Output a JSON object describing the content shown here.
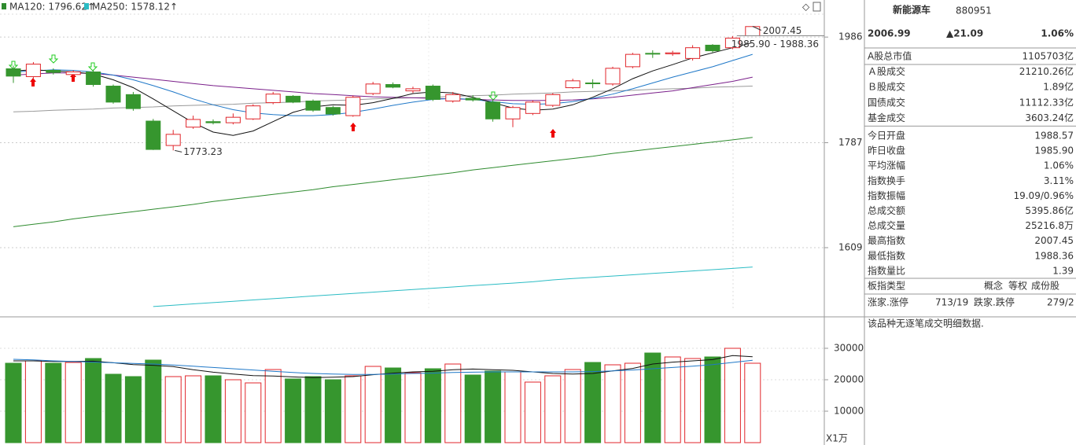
{
  "chart_data": [
    {
      "type": "candlestick",
      "log_scale": true,
      "ylim": [
        1505,
        2061
      ],
      "yticks": [
        1986,
        1787,
        1609
      ],
      "up_color": "#e0262b",
      "down_color": "#36962e",
      "open": [
        1924,
        1909,
        1921,
        1913,
        1918,
        1891,
        1875,
        1826,
        1782,
        1815,
        1825,
        1823,
        1830,
        1860,
        1872,
        1863,
        1851,
        1836,
        1877,
        1894,
        1882,
        1891,
        1863,
        1868,
        1861,
        1830,
        1840,
        1855,
        1888,
        1897,
        1895,
        1928,
        1954,
        1953,
        1944,
        1970,
        1965,
        1988.57
      ],
      "high": [
        1930,
        1937,
        1925,
        1921,
        1922,
        1894,
        1880,
        1830,
        1810,
        1836,
        1829,
        1840,
        1857,
        1880,
        1874,
        1866,
        1854,
        1873,
        1899,
        1898,
        1890,
        1894,
        1880,
        1874,
        1865,
        1854,
        1864,
        1878,
        1905,
        1904,
        1928,
        1955,
        1960,
        1959,
        1970,
        1972,
        1988,
        2007.45
      ],
      "low": [
        1897,
        1903,
        1913,
        1908,
        1890,
        1858,
        1845,
        1774,
        1773.23,
        1812,
        1820,
        1820,
        1828,
        1857,
        1859,
        1843,
        1836,
        1834,
        1874,
        1887,
        1878,
        1863,
        1860,
        1862,
        1825,
        1815,
        1837,
        1852,
        1886,
        1887,
        1892,
        1925,
        1945,
        1949,
        1940,
        1956,
        1962,
        1988.36
      ],
      "close": [
        1910,
        1933,
        1917,
        1918,
        1894,
        1861,
        1849,
        1775,
        1802,
        1829,
        1823,
        1833,
        1854,
        1876,
        1861,
        1846,
        1839,
        1870,
        1895,
        1889,
        1886,
        1866,
        1875,
        1865,
        1830,
        1851,
        1861,
        1875,
        1901,
        1896,
        1925,
        1952,
        1953,
        1955,
        1965,
        1959,
        1984,
        2006.99
      ],
      "series": [
        {
          "name": "MA120: 1796.62↑",
          "color": "#2e8b2e",
          "values": [
            1643,
            1647,
            1651,
            1656,
            1660,
            1664,
            1668,
            1672,
            1676,
            1680,
            1685,
            1689,
            1693,
            1697,
            1701,
            1705,
            1710,
            1714,
            1718,
            1722,
            1726,
            1730,
            1734,
            1739,
            1743,
            1747,
            1751,
            1755,
            1759,
            1763,
            1768,
            1772,
            1776,
            1780,
            1784,
            1788,
            1792,
            1796.62
          ]
        },
        {
          "name": "MA250: 1578.12↑",
          "color": "#2bbcc4",
          "values": [
            null,
            null,
            null,
            null,
            null,
            null,
            null,
            1517,
            1519,
            1521,
            1523,
            1525,
            1527,
            1529,
            1531,
            1533,
            1535,
            1537,
            1539,
            1541,
            1543,
            1545,
            1547,
            1549,
            1551,
            1553,
            1555,
            1558,
            1560,
            1562,
            1564,
            1566,
            1568,
            1570,
            1572,
            1574,
            1576,
            1578.12
          ]
        },
        {
          "color": "#999999",
          "values": [
            1843,
            1844,
            1846,
            1847,
            1848,
            1850,
            1851,
            1852,
            1854,
            1855,
            1856,
            1857,
            1859,
            1860,
            1861,
            1863,
            1864,
            1865,
            1867,
            1868,
            1869,
            1870,
            1872,
            1873,
            1874,
            1876,
            1877,
            1878,
            1880,
            1881,
            1882,
            1883,
            1885,
            1886,
            1887,
            1889,
            1890,
            1891
          ]
        },
        {
          "color": "#7a1f8a",
          "values": [
            1912,
            1914,
            1916,
            1916,
            1915,
            1912,
            1908,
            1904,
            1900,
            1896,
            1892,
            1889,
            1886,
            1883,
            1880,
            1877,
            1875,
            1873,
            1871,
            1870,
            1869,
            1868,
            1867,
            1866,
            1865,
            1864,
            1864,
            1864,
            1865,
            1867,
            1870,
            1874,
            1878,
            1882,
            1888,
            1894,
            1900,
            1908
          ]
        },
        {
          "color": "#1f78c8",
          "values": [
            1918,
            1920,
            1922,
            1921,
            1918,
            1912,
            1903,
            1892,
            1880,
            1867,
            1856,
            1847,
            1841,
            1838,
            1836,
            1836,
            1838,
            1842,
            1848,
            1855,
            1861,
            1866,
            1868,
            1866,
            1862,
            1858,
            1857,
            1858,
            1862,
            1868,
            1876,
            1886,
            1897,
            1908,
            1918,
            1928,
            1940,
            1952
          ]
        },
        {
          "color": "#111111",
          "values": [
            1920,
            1922,
            1920,
            1918,
            1914,
            1903,
            1888,
            1867,
            1845,
            1823,
            1806,
            1800,
            1808,
            1825,
            1842,
            1852,
            1856,
            1855,
            1860,
            1868,
            1877,
            1880,
            1878,
            1870,
            1860,
            1850,
            1846,
            1848,
            1856,
            1870,
            1886,
            1905,
            1920,
            1932,
            1945,
            1955,
            1965,
            1975
          ]
        }
      ],
      "annotations": [
        "2007.45",
        "1985.90 - 1988.36",
        "1773.23"
      ]
    },
    {
      "type": "volume",
      "ylim": [
        0,
        39500
      ],
      "yticks": [
        10000,
        20000,
        30000
      ],
      "unit_label": "X1万",
      "values": [
        25250,
        26000,
        25250,
        25500,
        26750,
        21750,
        21000,
        26250,
        21000,
        21250,
        21250,
        20000,
        19000,
        23250,
        20250,
        21000,
        20000,
        21250,
        24250,
        23750,
        22250,
        23500,
        25000,
        21500,
        22750,
        22500,
        19250,
        21250,
        23250,
        25500,
        24750,
        25250,
        28500,
        27250,
        26750,
        27250,
        30000,
        25250
      ],
      "series": [
        {
          "color": "#111111",
          "values": [
            26000,
            26000,
            25800,
            25800,
            25900,
            25400,
            24800,
            24600,
            24200,
            23200,
            22400,
            21800,
            21300,
            21200,
            20900,
            20700,
            20800,
            21000,
            21600,
            22100,
            22500,
            22700,
            23200,
            23400,
            23200,
            23000,
            22500,
            22000,
            21800,
            22000,
            22800,
            23600,
            25000,
            25600,
            26000,
            26400,
            27700,
            27300
          ]
        },
        {
          "color": "#1f78c8",
          "values": [
            26500,
            26300,
            26000,
            25800,
            25600,
            25400,
            25200,
            25000,
            24700,
            24300,
            23900,
            23500,
            23100,
            22700,
            22300,
            22000,
            21800,
            21700,
            21700,
            21800,
            22000,
            22100,
            22300,
            22400,
            22500,
            22500,
            22500,
            22500,
            22500,
            22600,
            22800,
            23100,
            23500,
            23900,
            24300,
            24800,
            25500,
            26200
          ]
        }
      ]
    }
  ],
  "panel": {
    "name": "新能源车",
    "code": "880951",
    "price": "2006.99",
    "change": "▲21.09",
    "change_pct": "1.06%",
    "color": "#e0262b",
    "rows": [
      {
        "label": "A股总市值",
        "value": "1105703亿"
      },
      {
        "label": "Ａ股成交",
        "value": "21210.26亿"
      },
      {
        "label": "Ｂ股成交",
        "value": "1.89亿"
      },
      {
        "label": "国债成交",
        "value": "11112.33亿"
      },
      {
        "label": "基金成交",
        "value": "3603.24亿"
      },
      {
        "label": "今日开盘",
        "value": "1988.57",
        "color": "#e0262b"
      },
      {
        "label": "昨日收盘",
        "value": "1985.90"
      },
      {
        "label": "平均涨幅",
        "value": "1.06%",
        "color": "#e0262b"
      },
      {
        "label": "指数换手",
        "value": "3.11%"
      },
      {
        "label": "指数振幅",
        "value": "19.09/0.96%"
      },
      {
        "label": "总成交额",
        "value": "5395.86亿"
      },
      {
        "label": "总成交量",
        "value": "25216.8万"
      },
      {
        "label": "最高指数",
        "value": "2007.45",
        "color": "#e0262b"
      },
      {
        "label": "最低指数",
        "value": "1988.36",
        "color": "#e0262b"
      },
      {
        "label": "指数量比",
        "value": "1.39",
        "color": "#e0262b"
      }
    ],
    "type_row": [
      "板指类型",
      "概念",
      "等权",
      "成份股"
    ],
    "breadth": [
      "涨家.涨停",
      "713/19",
      "跌家.跌停",
      "279/2"
    ],
    "note": "该品种无逐笔成交明细数据."
  }
}
